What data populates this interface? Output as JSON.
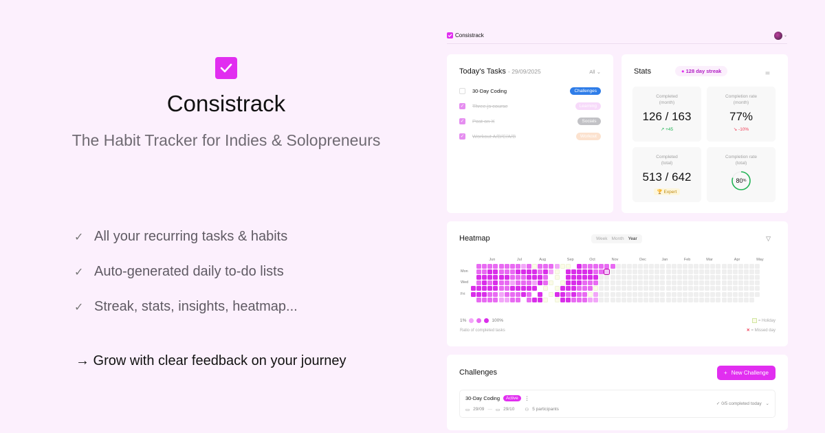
{
  "hero": {
    "title": "Consistrack",
    "subtitle": "The Habit Tracker for Indies & Solopreneurs",
    "features": [
      "All your recurring tasks & habits",
      "Auto-generated daily to-do lists",
      "Streak, stats, insights, heatmap..."
    ],
    "tagline": "→ Grow with clear feedback on your journey"
  },
  "app": {
    "brand": "Consistrack",
    "tasks": {
      "title": "Today's Tasks",
      "date": "- 29/09/2025",
      "filter": "All",
      "items": [
        {
          "label": "30-Day Coding",
          "tag": "Challenges",
          "done": false,
          "color": "#2f7de8"
        },
        {
          "label": "Three.js course",
          "tag": "Learning",
          "done": true,
          "color": "#f6d2fa"
        },
        {
          "label": "Post on X",
          "tag": "Socials",
          "done": true,
          "color": "#b4b4b8"
        },
        {
          "label": "Workout A/B/C/A/B",
          "tag": "Workout",
          "done": true,
          "color": "#fcdcc4"
        }
      ]
    },
    "stats": {
      "title": "Stats",
      "streak": "128 day streak",
      "cards": [
        {
          "label1": "Completed",
          "label2": "(month)",
          "value": "126 / 163",
          "delta": "↗ +45",
          "delta_color": "#22b455"
        },
        {
          "label1": "Completion rate",
          "label2": "(month)",
          "value": "77%",
          "delta": "↘ -10%",
          "delta_color": "#ef3b55"
        },
        {
          "label1": "Completed",
          "label2": "(total)",
          "value": "513 / 642",
          "badge": "🏆 Expert"
        },
        {
          "label1": "Completion rate",
          "label2": "(total)",
          "ring_value": "80",
          "ring_unit": "%",
          "ring_fraction": 0.8
        }
      ]
    },
    "heatmap": {
      "title": "Heatmap",
      "views": [
        "Week",
        "Month",
        "Year"
      ],
      "active_view": "Year",
      "months": [
        {
          "label": "Jun",
          "col": 4
        },
        {
          "label": "Jul",
          "col": 9
        },
        {
          "label": "Aug",
          "col": 13
        },
        {
          "label": "Sep",
          "col": 18
        },
        {
          "label": "Oct",
          "col": 22
        },
        {
          "label": "Nov",
          "col": 26
        },
        {
          "label": "Dec",
          "col": 31
        },
        {
          "label": "Jan",
          "col": 35
        },
        {
          "label": "Feb",
          "col": 39
        },
        {
          "label": "Mar",
          "col": 43
        },
        {
          "label": "Apr",
          "col": 48
        },
        {
          "label": "May",
          "col": 52
        }
      ],
      "day_labels": [
        {
          "label": "Mon",
          "row": 1
        },
        {
          "label": "Wed",
          "row": 3
        },
        {
          "label": "Fri",
          "row": 5
        }
      ],
      "rows": [
        " 2222222212h2221hh-3222222",
        " 22332223333231h-3333322t",
        " 3333332223332-h-3333330",
        " 2323221222132h-h3332220",
        "333332233333-h-h333222h0",
        "33322122232-3-h332322h1",
        " 22221122-233h-h3322211"
      ],
      "legend_min": "1%",
      "legend_max": "100%",
      "legend_caption": "Ratio of completed tasks",
      "holiday": "= Holiday",
      "missed": "= Missed day",
      "colors": {
        "1": "#f2a6f8",
        "2": "#e86af2",
        "3": "#d92ee9",
        "empty": "#efefef"
      }
    },
    "challenges": {
      "title": "Challenges",
      "new_button": "New Challenge",
      "item": {
        "name": "30-Day Coding",
        "status": "Active",
        "start": "29/09",
        "end": "29/10",
        "participants": "5 participants",
        "progress": "0/5 completed today"
      }
    },
    "accent": "#e12ef0"
  }
}
